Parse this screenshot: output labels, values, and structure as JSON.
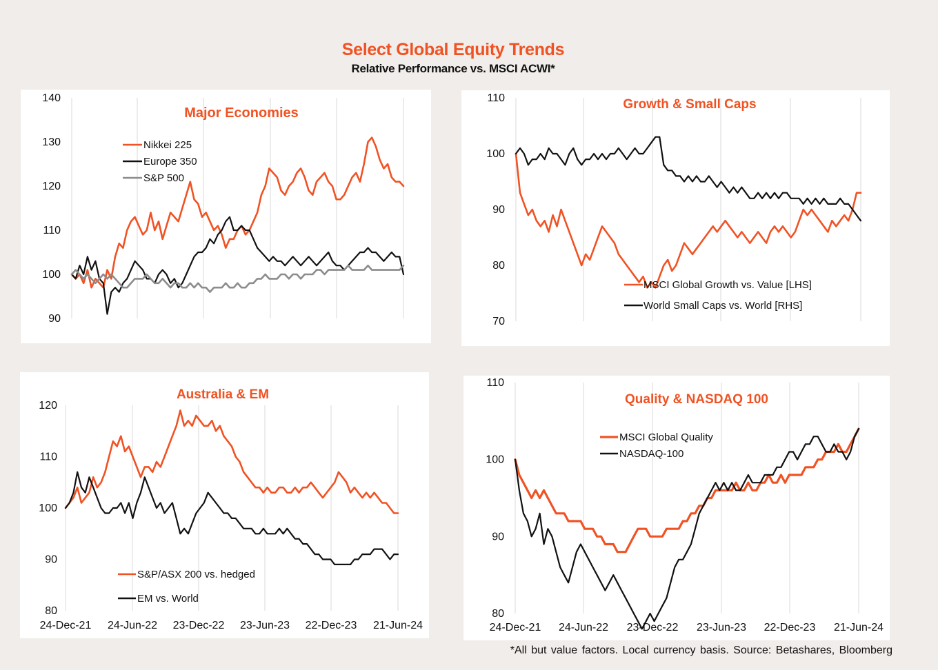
{
  "title": "Select Global Equity Trends",
  "subtitle": "Relative Performance vs. MSCI ACWI*",
  "footnote": "*All but value factors. Local currency basis. Source: Betashares, Bloomberg",
  "colors": {
    "orange": "#f05223",
    "black": "#111111",
    "grey": "#8c8c8c"
  },
  "chart_data": [
    {
      "id": "major-economies",
      "type": "line",
      "title": "Major Economies",
      "grid": "vertical",
      "legend": "top-left",
      "x_ticks": [],
      "ylim": [
        90,
        140
      ],
      "y_ticks": [
        "140",
        "130",
        "120",
        "110",
        "100",
        "90"
      ],
      "series": [
        {
          "name": "Nikkei 225",
          "color": "#f05223",
          "width": 2.6,
          "values": [
            100,
            99,
            100,
            98,
            101,
            97,
            99,
            98,
            97,
            101,
            99,
            104,
            107,
            106,
            110,
            112,
            113,
            111,
            109,
            110,
            114,
            110,
            112,
            108,
            111,
            114,
            113,
            112,
            115,
            118,
            121,
            117,
            116,
            113,
            114,
            112,
            110,
            111,
            109,
            106,
            108,
            108,
            110,
            111,
            109,
            110,
            112,
            114,
            118,
            120,
            124,
            123,
            122,
            119,
            118,
            120,
            121,
            123,
            124,
            122,
            119,
            118,
            121,
            122,
            123,
            121,
            120,
            117,
            117,
            118,
            120,
            122,
            123,
            121,
            125,
            130,
            131,
            129,
            126,
            124,
            125,
            122,
            121,
            121,
            120
          ]
        },
        {
          "name": "Europe 350",
          "color": "#111111",
          "width": 2.2,
          "values": [
            100,
            99,
            102,
            100,
            104,
            101,
            103,
            99,
            98,
            91,
            96,
            97,
            96,
            98,
            99,
            101,
            103,
            102,
            101,
            99,
            99,
            98,
            100,
            101,
            100,
            98,
            99,
            97,
            98,
            100,
            102,
            104,
            105,
            105,
            106,
            108,
            107,
            109,
            110,
            112,
            113,
            110,
            110,
            111,
            110,
            110,
            108,
            106,
            105,
            104,
            103,
            104,
            103,
            103,
            102,
            103,
            104,
            103,
            102,
            103,
            104,
            103,
            102,
            103,
            104,
            105,
            103,
            102,
            102,
            101,
            102,
            103,
            104,
            105,
            105,
            106,
            105,
            105,
            104,
            103,
            104,
            105,
            104,
            104,
            100
          ]
        },
        {
          "name": "S&P 500",
          "color": "#8c8c8c",
          "width": 2.6,
          "values": [
            100,
            101,
            100,
            99,
            100,
            99,
            98,
            99,
            100,
            99,
            100,
            99,
            98,
            97,
            97,
            98,
            99,
            99,
            99,
            100,
            99,
            98,
            98,
            99,
            98,
            97,
            98,
            98,
            97,
            97,
            98,
            97,
            98,
            97,
            97,
            96,
            97,
            97,
            97,
            98,
            97,
            97,
            98,
            97,
            97,
            98,
            98,
            99,
            99,
            100,
            99,
            99,
            99,
            100,
            100,
            99,
            100,
            100,
            99,
            100,
            100,
            100,
            101,
            101,
            100,
            101,
            101,
            101,
            101,
            101,
            102,
            101,
            101,
            101,
            101,
            102,
            101,
            101,
            101,
            101,
            101,
            101,
            101,
            101,
            102
          ]
        }
      ]
    },
    {
      "id": "growth-small-caps",
      "type": "line",
      "title": "Growth & Small Caps",
      "grid": "vertical",
      "legend": "bottom",
      "x_ticks": [],
      "ylim": [
        70,
        110
      ],
      "y_ticks": [
        "110",
        "100",
        "90",
        "80",
        "70"
      ],
      "series": [
        {
          "name": "MSCI Global Growth vs. Value [LHS]",
          "color": "#f05223",
          "width": 2.6,
          "axis": "left",
          "values": [
            100,
            93,
            91,
            89,
            90,
            88,
            87,
            88,
            86,
            89,
            87,
            90,
            88,
            86,
            84,
            82,
            80,
            82,
            81,
            83,
            85,
            87,
            86,
            85,
            84,
            82,
            81,
            80,
            79,
            78,
            77,
            78,
            76,
            77,
            76,
            78,
            80,
            81,
            79,
            80,
            82,
            84,
            83,
            82,
            83,
            84,
            85,
            86,
            87,
            86,
            87,
            88,
            87,
            86,
            85,
            86,
            85,
            84,
            85,
            86,
            85,
            84,
            86,
            87,
            86,
            87,
            86,
            85,
            86,
            88,
            90,
            89,
            90,
            89,
            88,
            87,
            86,
            88,
            87,
            88,
            89,
            88,
            90,
            93,
            93
          ]
        },
        {
          "name": "World Small Caps vs. World [RHS]",
          "color": "#111111",
          "width": 2.2,
          "axis": "right",
          "values": [
            100,
            101,
            100,
            98,
            99,
            99,
            100,
            99,
            101,
            100,
            100,
            99,
            98,
            100,
            101,
            99,
            98,
            99,
            99,
            100,
            99,
            100,
            99,
            100,
            100,
            101,
            100,
            99,
            100,
            101,
            100,
            100,
            101,
            102,
            103,
            103,
            98,
            97,
            97,
            96,
            96,
            95,
            96,
            95,
            96,
            95,
            95,
            96,
            95,
            94,
            95,
            94,
            93,
            94,
            93,
            94,
            93,
            92,
            92,
            93,
            92,
            93,
            92,
            93,
            92,
            93,
            93,
            92,
            92,
            92,
            91,
            92,
            91,
            92,
            91,
            92,
            91,
            91,
            91,
            92,
            91,
            91,
            90,
            89,
            88
          ]
        }
      ]
    },
    {
      "id": "australia-em",
      "type": "line",
      "title": "Australia & EM",
      "grid": "vertical",
      "legend": "bottom",
      "x_ticks": [
        "24-Dec-21",
        "24-Jun-22",
        "23-Dec-22",
        "23-Jun-23",
        "22-Dec-23",
        "21-Jun-24"
      ],
      "ylim": [
        80,
        120
      ],
      "y_ticks": [
        "120",
        "110",
        "100",
        "90",
        "80"
      ],
      "series": [
        {
          "name": "S&P/ASX 200 vs. hedged",
          "color": "#f05223",
          "width": 2.6,
          "values": [
            100,
            101,
            102,
            104,
            101,
            102,
            103,
            106,
            104,
            105,
            107,
            110,
            113,
            112,
            114,
            111,
            112,
            110,
            108,
            106,
            108,
            108,
            107,
            109,
            108,
            110,
            112,
            114,
            116,
            119,
            116,
            117,
            116,
            118,
            117,
            116,
            116,
            117,
            115,
            116,
            114,
            113,
            112,
            110,
            109,
            107,
            106,
            105,
            104,
            104,
            103,
            104,
            103,
            103,
            104,
            104,
            103,
            103,
            104,
            103,
            104,
            104,
            105,
            104,
            103,
            102,
            103,
            104,
            105,
            107,
            106,
            105,
            103,
            104,
            103,
            102,
            103,
            102,
            103,
            102,
            101,
            101,
            100,
            99,
            99
          ]
        },
        {
          "name": "EM vs. World",
          "color": "#111111",
          "width": 2.2,
          "values": [
            100,
            101,
            103,
            107,
            104,
            103,
            106,
            104,
            102,
            100,
            99,
            99,
            100,
            100,
            101,
            99,
            101,
            98,
            101,
            103,
            106,
            104,
            102,
            100,
            101,
            99,
            100,
            101,
            98,
            95,
            96,
            95,
            97,
            99,
            100,
            101,
            103,
            102,
            101,
            100,
            99,
            99,
            98,
            98,
            97,
            96,
            96,
            96,
            95,
            95,
            96,
            95,
            95,
            95,
            96,
            95,
            96,
            95,
            94,
            94,
            93,
            93,
            92,
            91,
            91,
            90,
            90,
            90,
            89,
            89,
            89,
            89,
            89,
            90,
            90,
            91,
            91,
            91,
            92,
            92,
            92,
            91,
            90,
            91,
            91
          ]
        }
      ]
    },
    {
      "id": "quality-nasdaq",
      "type": "line",
      "title": "Quality & NASDAQ 100",
      "grid": "vertical",
      "legend": "top-left",
      "x_ticks": [
        "24-Dec-21",
        "24-Jun-22",
        "23-Dec-22",
        "23-Jun-23",
        "22-Dec-23",
        "21-Jun-24"
      ],
      "ylim": [
        80,
        110
      ],
      "y_ticks": [
        "110",
        "100",
        "90",
        "80"
      ],
      "series": [
        {
          "name": "MSCI Global Quality",
          "color": "#f05223",
          "width": 3.2,
          "values": [
            100,
            98,
            97,
            96,
            95,
            96,
            95,
            96,
            95,
            94,
            93,
            93,
            93,
            92,
            92,
            92,
            92,
            91,
            91,
            91,
            90,
            90,
            89,
            89,
            89,
            88,
            88,
            88,
            89,
            90,
            91,
            91,
            91,
            90,
            90,
            90,
            90,
            91,
            91,
            91,
            91,
            92,
            92,
            93,
            93,
            94,
            94,
            95,
            95,
            96,
            96,
            96,
            96,
            96,
            97,
            96,
            96,
            97,
            96,
            96,
            97,
            97,
            98,
            97,
            97,
            98,
            97,
            98,
            98,
            98,
            98,
            99,
            99,
            99,
            100,
            100,
            101,
            101,
            101,
            102,
            101,
            101,
            102,
            103,
            104
          ]
        },
        {
          "name": "NASDAQ-100",
          "color": "#111111",
          "width": 2.2,
          "values": [
            100,
            96,
            93,
            92,
            90,
            91,
            93,
            89,
            91,
            90,
            88,
            86,
            85,
            84,
            86,
            88,
            89,
            88,
            87,
            86,
            85,
            84,
            83,
            84,
            85,
            84,
            83,
            82,
            81,
            80,
            79,
            78,
            79,
            80,
            79,
            80,
            81,
            82,
            84,
            86,
            87,
            87,
            88,
            89,
            91,
            93,
            94,
            95,
            96,
            97,
            96,
            97,
            96,
            97,
            96,
            96,
            97,
            98,
            97,
            97,
            97,
            98,
            98,
            98,
            99,
            99,
            100,
            101,
            101,
            100,
            101,
            102,
            102,
            103,
            103,
            102,
            101,
            101,
            102,
            101,
            101,
            100,
            101,
            103,
            104
          ]
        }
      ]
    }
  ]
}
